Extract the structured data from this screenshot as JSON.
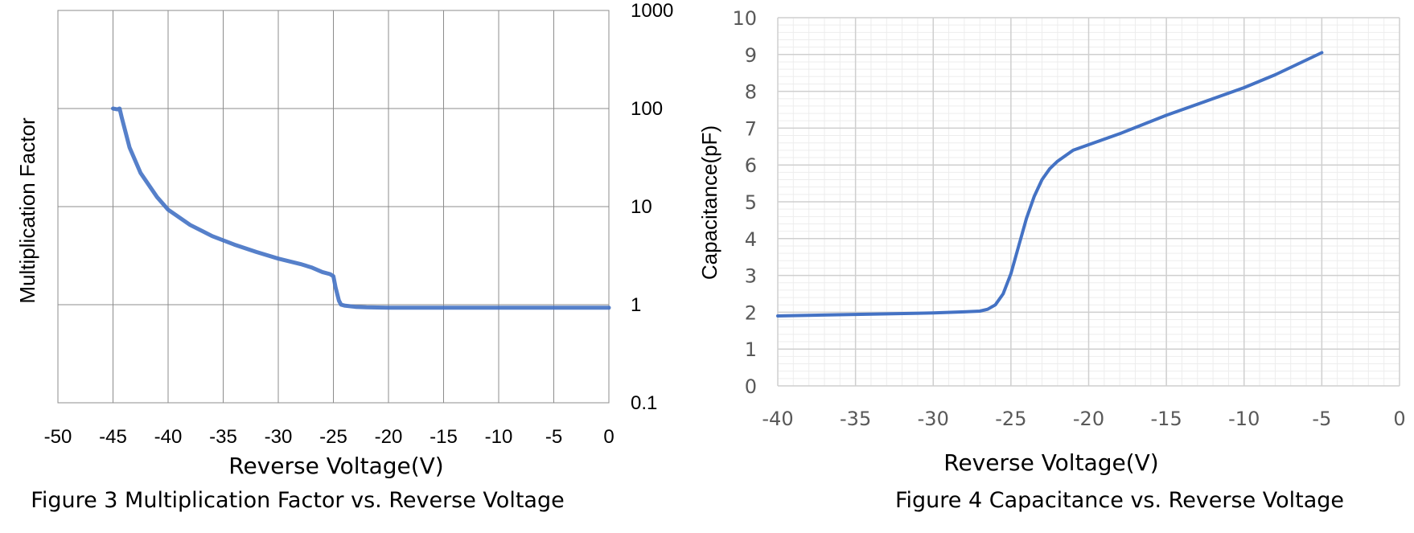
{
  "chart_data": [
    {
      "type": "line",
      "title": "",
      "caption": "Figure 3 Multiplication Factor vs. Reverse  Voltage",
      "xlabel": "Reverse Voltage(V)",
      "ylabel": "Multiplication  Factor",
      "yscale": "log",
      "xlim": [
        -50,
        0
      ],
      "ylim": [
        0.1,
        1000
      ],
      "x_ticks": [
        "-50",
        "-45",
        "-40",
        "-35",
        "-30",
        "-25",
        "-20",
        "-15",
        "-10",
        "-5",
        "0"
      ],
      "y_ticks": [
        "0.1",
        "1",
        "10",
        "100",
        "1000"
      ],
      "grid": true,
      "series": [
        {
          "name": "Multiplication Factor",
          "color": "#4472c4",
          "x": [
            -45,
            -44.6,
            -44.4,
            -44.2,
            -43.5,
            -42.5,
            -41,
            -40,
            -38,
            -36,
            -34,
            -32,
            -30,
            -28,
            -27,
            -26,
            -25.3,
            -25,
            -24.8,
            -24.5,
            -24.3,
            -24,
            -23,
            -22,
            -20,
            -15,
            -10,
            -5,
            0
          ],
          "y": [
            100,
            98,
            100,
            80,
            40,
            22,
            12.5,
            9.3,
            6.5,
            5.0,
            4.1,
            3.45,
            2.95,
            2.6,
            2.4,
            2.15,
            2.05,
            1.95,
            1.5,
            1.1,
            1.0,
            0.98,
            0.95,
            0.94,
            0.93,
            0.93,
            0.93,
            0.93,
            0.93
          ]
        }
      ]
    },
    {
      "type": "line",
      "title": "",
      "caption": "Figure 4 Capacitance vs.  Reverse Voltage",
      "xlabel": "Reverse Voltage(V)",
      "ylabel": "Capacitance(pF)",
      "xlim": [
        -40,
        0
      ],
      "ylim": [
        0,
        10
      ],
      "x_ticks": [
        "-40",
        "-35",
        "-30",
        "-25",
        "-20",
        "-15",
        "-10",
        "-5",
        "0"
      ],
      "y_ticks": [
        "0",
        "1",
        "2",
        "3",
        "4",
        "5",
        "6",
        "7",
        "8",
        "9",
        "10"
      ],
      "grid": true,
      "minor_grid": true,
      "series": [
        {
          "name": "Capacitance",
          "color": "#4472c4",
          "x": [
            -40,
            -35,
            -30,
            -28,
            -27,
            -26.5,
            -26,
            -25.5,
            -25,
            -24.5,
            -24,
            -23.5,
            -23,
            -22.5,
            -22,
            -21,
            -20,
            -18,
            -15,
            -12,
            -10,
            -8,
            -5
          ],
          "y": [
            1.9,
            1.94,
            1.98,
            2.01,
            2.03,
            2.08,
            2.2,
            2.5,
            3.05,
            3.8,
            4.55,
            5.15,
            5.6,
            5.9,
            6.1,
            6.4,
            6.55,
            6.85,
            7.35,
            7.8,
            8.1,
            8.45,
            9.05
          ]
        }
      ]
    }
  ]
}
